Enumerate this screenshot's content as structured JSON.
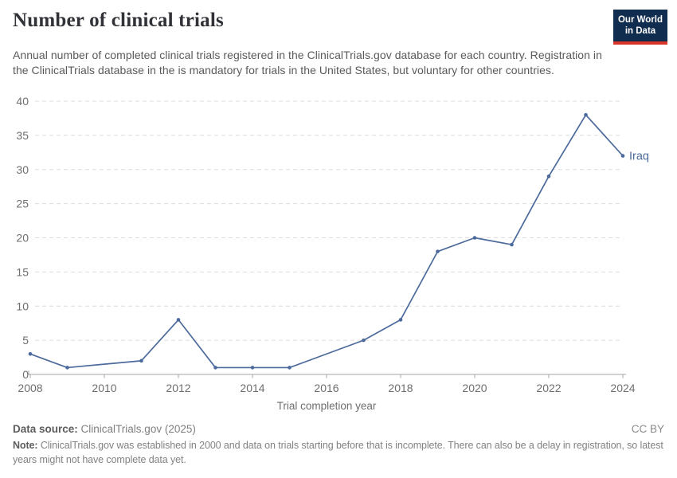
{
  "header": {
    "title": "Number of clinical trials",
    "subtitle": "Annual number of completed clinical trials registered in the ClinicalTrials.gov database for each country. Registration in the ClinicalTrials database in the is mandatory for trials in the United States, but voluntary for other countries.",
    "logo": {
      "line1": "Our World",
      "line2": "in Data"
    }
  },
  "chart_data": {
    "type": "line",
    "title": "Number of clinical trials",
    "xlabel": "Trial completion year",
    "ylabel": "",
    "xlim": [
      2008,
      2024
    ],
    "ylim": [
      0,
      40
    ],
    "x_ticks": [
      2008,
      2010,
      2012,
      2014,
      2016,
      2018,
      2020,
      2022,
      2024
    ],
    "y_ticks": [
      0,
      5,
      10,
      15,
      20,
      25,
      30,
      35,
      40
    ],
    "grid": "horizontal-dashed",
    "legend_position": "end-of-line-label",
    "series": [
      {
        "name": "Iraq",
        "color": "#4c6a9c",
        "points": [
          {
            "year": 2008,
            "value": 3
          },
          {
            "year": 2009,
            "value": 1
          },
          {
            "year": 2011,
            "value": 2
          },
          {
            "year": 2012,
            "value": 8
          },
          {
            "year": 2013,
            "value": 1
          },
          {
            "year": 2014,
            "value": 1
          },
          {
            "year": 2015,
            "value": 1
          },
          {
            "year": 2017,
            "value": 5
          },
          {
            "year": 2018,
            "value": 8
          },
          {
            "year": 2019,
            "value": 18
          },
          {
            "year": 2020,
            "value": 20
          },
          {
            "year": 2021,
            "value": 19
          },
          {
            "year": 2022,
            "value": 29
          },
          {
            "year": 2023,
            "value": 38
          },
          {
            "year": 2024,
            "value": 32
          }
        ]
      }
    ]
  },
  "footer": {
    "datasource_label": "Data source:",
    "datasource_value": "ClinicalTrials.gov (2025)",
    "license": "CC BY",
    "note_label": "Note:",
    "note_text": "ClinicalTrials.gov was established in 2000 and data on trials starting before that is incomplete. There can also be a delay in registration, so latest years might not have complete data yet."
  },
  "colors": {
    "line": "#4c6a9c",
    "gridline": "#dcdcdc",
    "axis": "#a5a5a5",
    "tick_text": "#6e6e6e",
    "logo_bg": "#102d50",
    "logo_red": "#d7352a"
  }
}
